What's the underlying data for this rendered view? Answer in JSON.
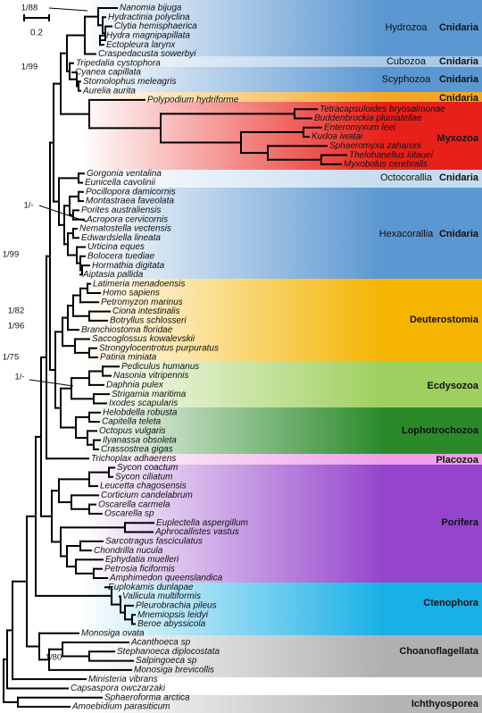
{
  "scale_bar": "0.2",
  "support_values": [
    "1/88",
    "1/99",
    "1/-",
    "1/99",
    "1/82",
    "1/96",
    "1/75",
    "1/-",
    "1/80"
  ],
  "taxa": [
    "Nanomia bijuga",
    "Hydractinia polyclina",
    "Clytia hemisphaerica",
    "Hydra magnipapillata",
    "Ectopleura larynx",
    "Craspedacusta sowerbyi",
    "Tripedalia cystophora",
    "Cyanea capillata",
    "Stomolophus meleagris",
    "Aurelia aurita",
    "Polypodium hydriforme",
    "Tetracapsuloides bryosalmonae",
    "Buddenbrockia plumatellae",
    "Enteromyxum leei",
    "Kudoa iwatai",
    "Sphaeromyxa zaharoni",
    "Thelohanellus kitauei",
    "Myxobolus cerebralis",
    "Gorgonia ventalina",
    "Eunicella cavolinii",
    "Pocillopora damicornis",
    "Montastraea faveolata",
    "Porites australiensis",
    "Acropora cervicornis",
    "Nematostella vectensis",
    "Edwardsiella lineata",
    "Urticina eques",
    "Bolocera tuediae",
    "Hormathia digitata",
    "Aiptasia pallida",
    "Latimeria menadoensis",
    "Homo sapiens",
    "Petromyzon marinus",
    "Ciona intestinalis",
    "Botryllus schlosseri",
    "Branchiostoma floridae",
    "Saccoglossus kowalevskii",
    "Strongylocentrotus purpuratus",
    "Patiria miniata",
    "Pediculus humanus",
    "Nasonia vitripennis",
    "Daphnia pulex",
    "Strigamia maritima",
    "Ixodes scapularis",
    "Helobdella robusta",
    "Capitella teleta",
    "Octopus vulgaris",
    "Ilyanassa obsoleta",
    "Crassostrea gigas",
    "Trichoplax adhaerens",
    "Sycon coactum",
    "Sycon ciliatum",
    "Leucetta chagosensis",
    "Corticium candelabrum",
    "Oscarella carmela",
    "Oscarella sp",
    "Euplectella aspergillum",
    "Aphrocallistes vastus",
    "Sarcotragus fasciculatus",
    "Chondrilla nucula",
    "Ephydatia muelleri",
    "Petrosia ficiformis",
    "Amphimedon queenslandica",
    "Euplokamis dunlapae",
    "Vallicula multiformis",
    "Pleurobrachia pileus",
    "Mnemiopsis leidyi",
    "Beroe abyssicola",
    "Monosiga ovata",
    "Acanthoeca sp",
    "Stephanoeca diplocostata",
    "Salpingoeca sp",
    "Monosiga brevicollis",
    "Ministeria vibrans",
    "Capsaspora owczarzaki",
    "Sphaeroforma arctica",
    "Amoebidium parasiticum"
  ],
  "groups": [
    {
      "rank": "Hydrozoa",
      "clade": "Cnidaria"
    },
    {
      "rank": "Cubozoa",
      "clade": "Cnidaria"
    },
    {
      "rank": "Scyphozoa",
      "clade": "Cnidaria"
    },
    {
      "clade": "Cnidaria"
    },
    {
      "clade": "Myxozoa"
    },
    {
      "rank": "Octocorallia",
      "clade": "Cnidaria"
    },
    {
      "rank": "Hexacorallia",
      "clade": "Cnidaria"
    },
    {
      "clade": "Deuterostomia"
    },
    {
      "clade": "Ecdysozoa"
    },
    {
      "clade": "Lophotrochozoa"
    },
    {
      "clade": "Placozoa"
    },
    {
      "clade": "Porifera"
    },
    {
      "clade": "Ctenophora"
    },
    {
      "clade": "Choanoflagellata"
    },
    {
      "clade": "Ichthyosporea"
    }
  ]
}
